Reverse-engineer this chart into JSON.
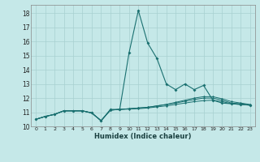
{
  "title": "",
  "xlabel": "Humidex (Indice chaleur)",
  "bg_color": "#c5e8e8",
  "grid_color": "#a8d0d0",
  "line_color": "#1a7070",
  "xlim": [
    -0.5,
    23.5
  ],
  "ylim": [
    10.0,
    18.6
  ],
  "xticks": [
    0,
    1,
    2,
    3,
    4,
    5,
    6,
    7,
    8,
    9,
    10,
    11,
    12,
    13,
    14,
    15,
    16,
    17,
    18,
    19,
    20,
    21,
    22,
    23
  ],
  "yticks": [
    10,
    11,
    12,
    13,
    14,
    15,
    16,
    17,
    18
  ],
  "series1": [
    10.5,
    10.7,
    10.85,
    11.1,
    11.1,
    11.1,
    10.95,
    10.4,
    11.2,
    11.2,
    15.2,
    18.2,
    15.9,
    14.8,
    13.0,
    12.6,
    13.0,
    12.6,
    12.9,
    11.85,
    11.65,
    11.6,
    11.55,
    11.5
  ],
  "series2": [
    10.5,
    10.7,
    10.85,
    11.1,
    11.1,
    11.1,
    10.95,
    10.4,
    11.15,
    11.2,
    11.25,
    11.3,
    11.35,
    11.45,
    11.55,
    11.7,
    11.85,
    12.0,
    12.1,
    12.1,
    11.95,
    11.75,
    11.65,
    11.55
  ],
  "series3": [
    10.5,
    10.7,
    10.85,
    11.1,
    11.1,
    11.1,
    10.95,
    10.4,
    11.15,
    11.2,
    11.25,
    11.3,
    11.35,
    11.45,
    11.55,
    11.65,
    11.78,
    11.9,
    12.0,
    12.0,
    11.85,
    11.65,
    11.6,
    11.5
  ],
  "series4": [
    10.5,
    10.7,
    10.85,
    11.1,
    11.1,
    11.1,
    10.95,
    10.4,
    11.15,
    11.2,
    11.22,
    11.25,
    11.3,
    11.38,
    11.45,
    11.55,
    11.65,
    11.75,
    11.82,
    11.85,
    11.75,
    11.6,
    11.55,
    11.5
  ]
}
